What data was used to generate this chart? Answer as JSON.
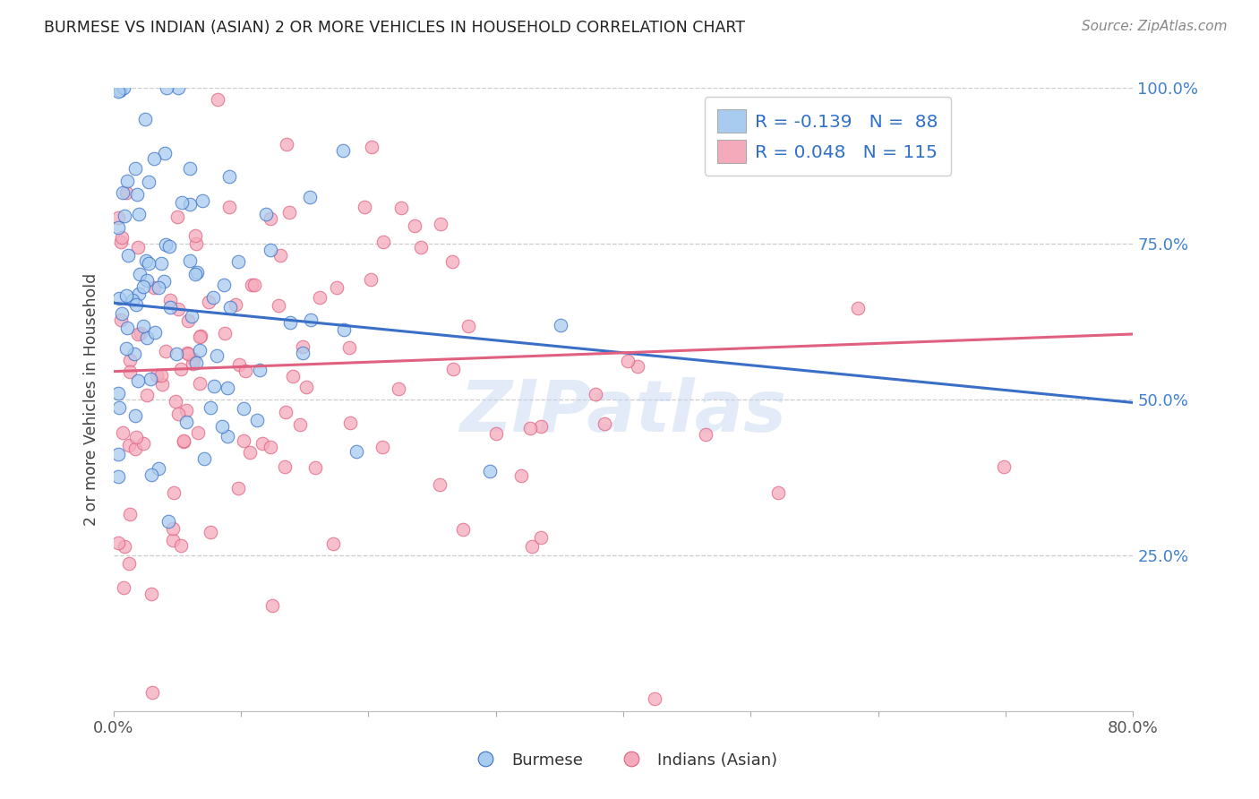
{
  "title": "BURMESE VS INDIAN (ASIAN) 2 OR MORE VEHICLES IN HOUSEHOLD CORRELATION CHART",
  "source": "Source: ZipAtlas.com",
  "ylabel": "2 or more Vehicles in Household",
  "xlim": [
    0.0,
    0.8
  ],
  "ylim": [
    0.0,
    1.0
  ],
  "burmese_color": "#A8CCF0",
  "indian_color": "#F5AABB",
  "blue_line_color": "#3A6FC8",
  "pink_line_color": "#E06080",
  "watermark": "ZIPatlas",
  "burmese_R": -0.139,
  "indian_R": 0.048,
  "burmese_N": 88,
  "indian_N": 115,
  "background_color": "#ffffff",
  "grid_color": "#cccccc",
  "tick_color_blue": "#4080D0",
  "legend_text_color": "#3070C8",
  "blue_line_start_y": 0.655,
  "blue_line_end_y": 0.495,
  "pink_line_start_y": 0.545,
  "pink_line_end_y": 0.605
}
